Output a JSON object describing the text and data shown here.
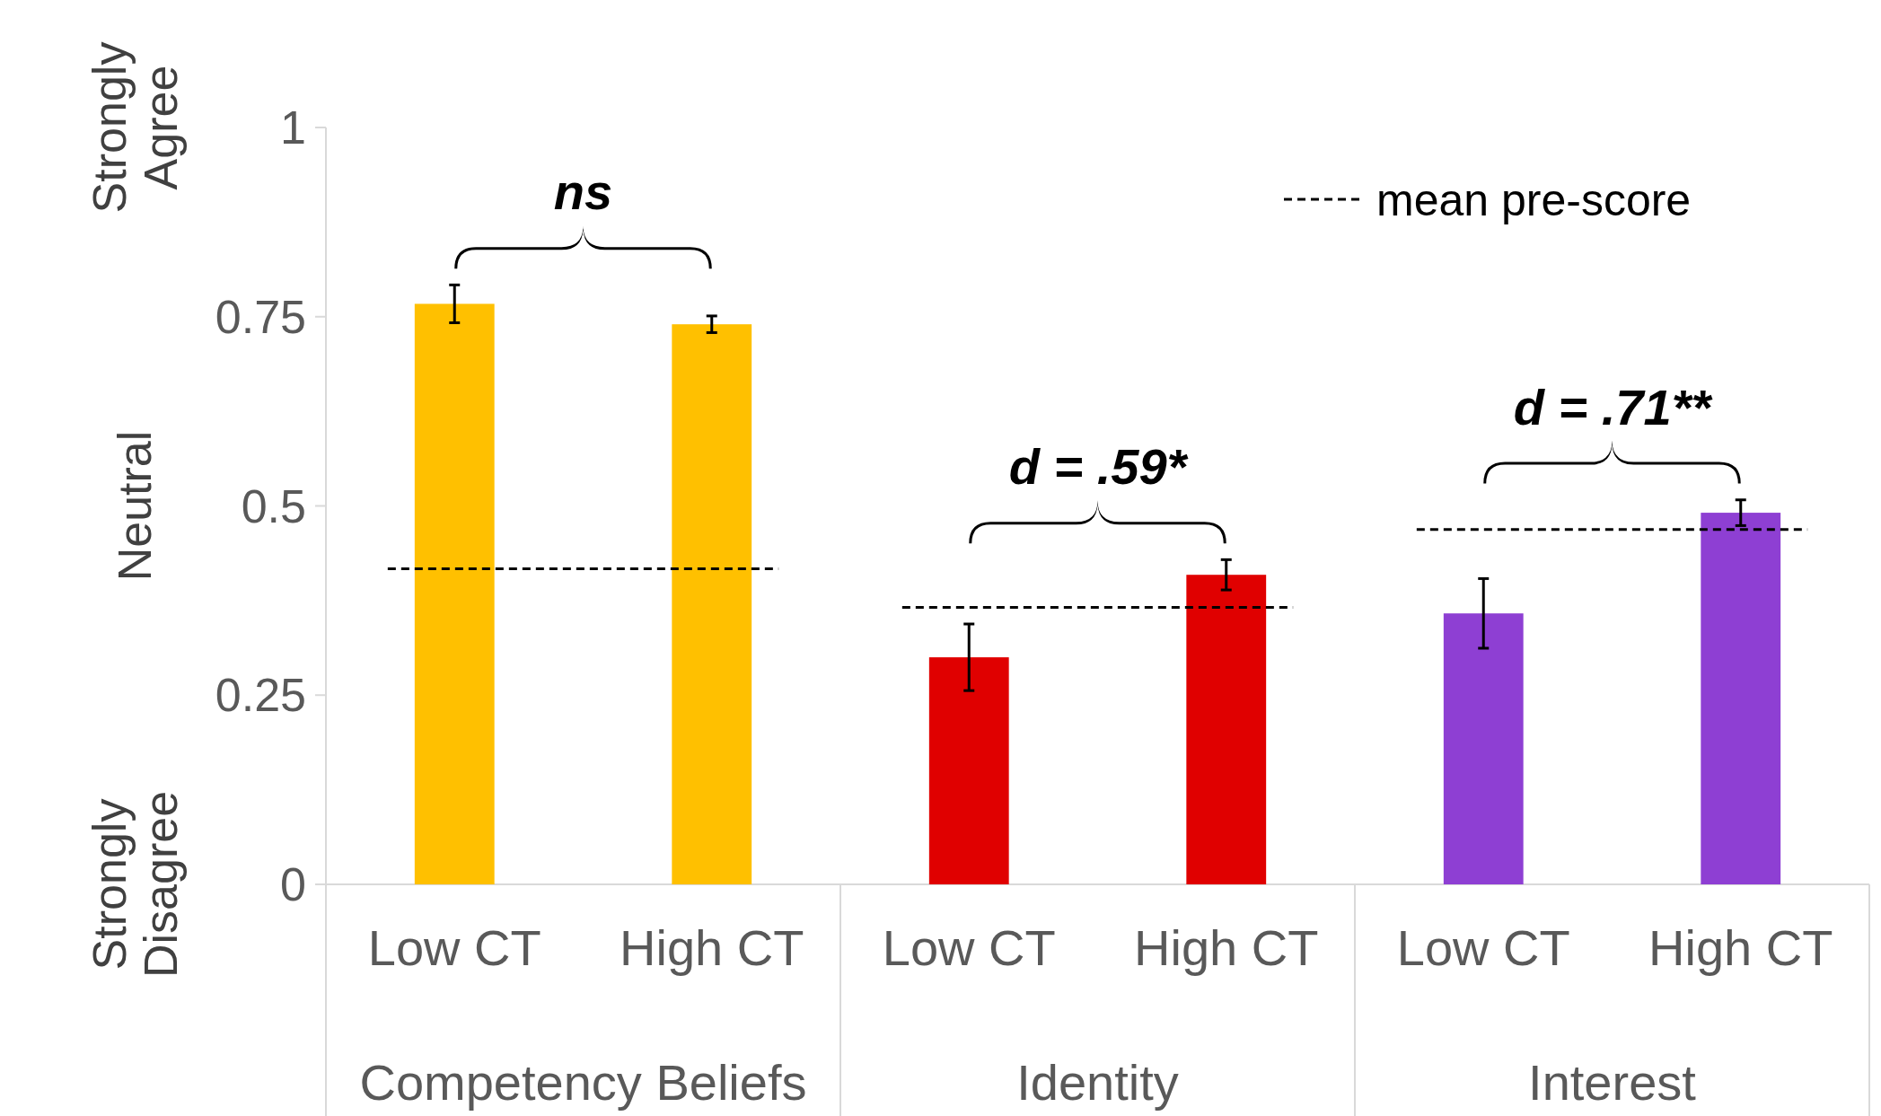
{
  "chart_data": {
    "type": "bar",
    "categories": [
      "Low CT",
      "High CT",
      "Low CT",
      "High CT",
      "Low CT",
      "High CT"
    ],
    "series": [
      {
        "color": "#ffc000",
        "values": [
          0.767,
          0.74,
          null,
          null,
          null,
          null
        ],
        "errors": [
          0.025,
          0.011,
          null,
          null,
          null,
          null
        ]
      },
      {
        "color": "#e00000",
        "values": [
          null,
          null,
          0.3,
          0.409,
          null,
          null
        ],
        "errors": [
          null,
          null,
          0.044,
          0.02,
          null,
          null
        ]
      },
      {
        "color": "#8e3fd3",
        "values": [
          null,
          null,
          null,
          null,
          0.358,
          0.491
        ],
        "errors": [
          null,
          null,
          null,
          null,
          0.046,
          0.017
        ]
      }
    ],
    "ylim": [
      0,
      1
    ],
    "yticks": [
      0,
      0.25,
      0.5,
      0.75,
      1
    ],
    "grid": false,
    "ref_lines": [
      {
        "axis": "y",
        "value": 0.417,
        "label": "mean pre-score",
        "line_style": "dashed"
      },
      {
        "axis": "y",
        "value": 0.366,
        "line_style": "dashed"
      },
      {
        "axis": "y",
        "value": 0.469,
        "line_style": "dashed"
      }
    ],
    "annotations": [
      "ns",
      "d = .59*",
      "d = .71**",
      "Competency Beliefs",
      "Identity",
      "Interest",
      "Strongly Agree",
      "Neutral",
      "Strongly Disagree"
    ]
  }
}
